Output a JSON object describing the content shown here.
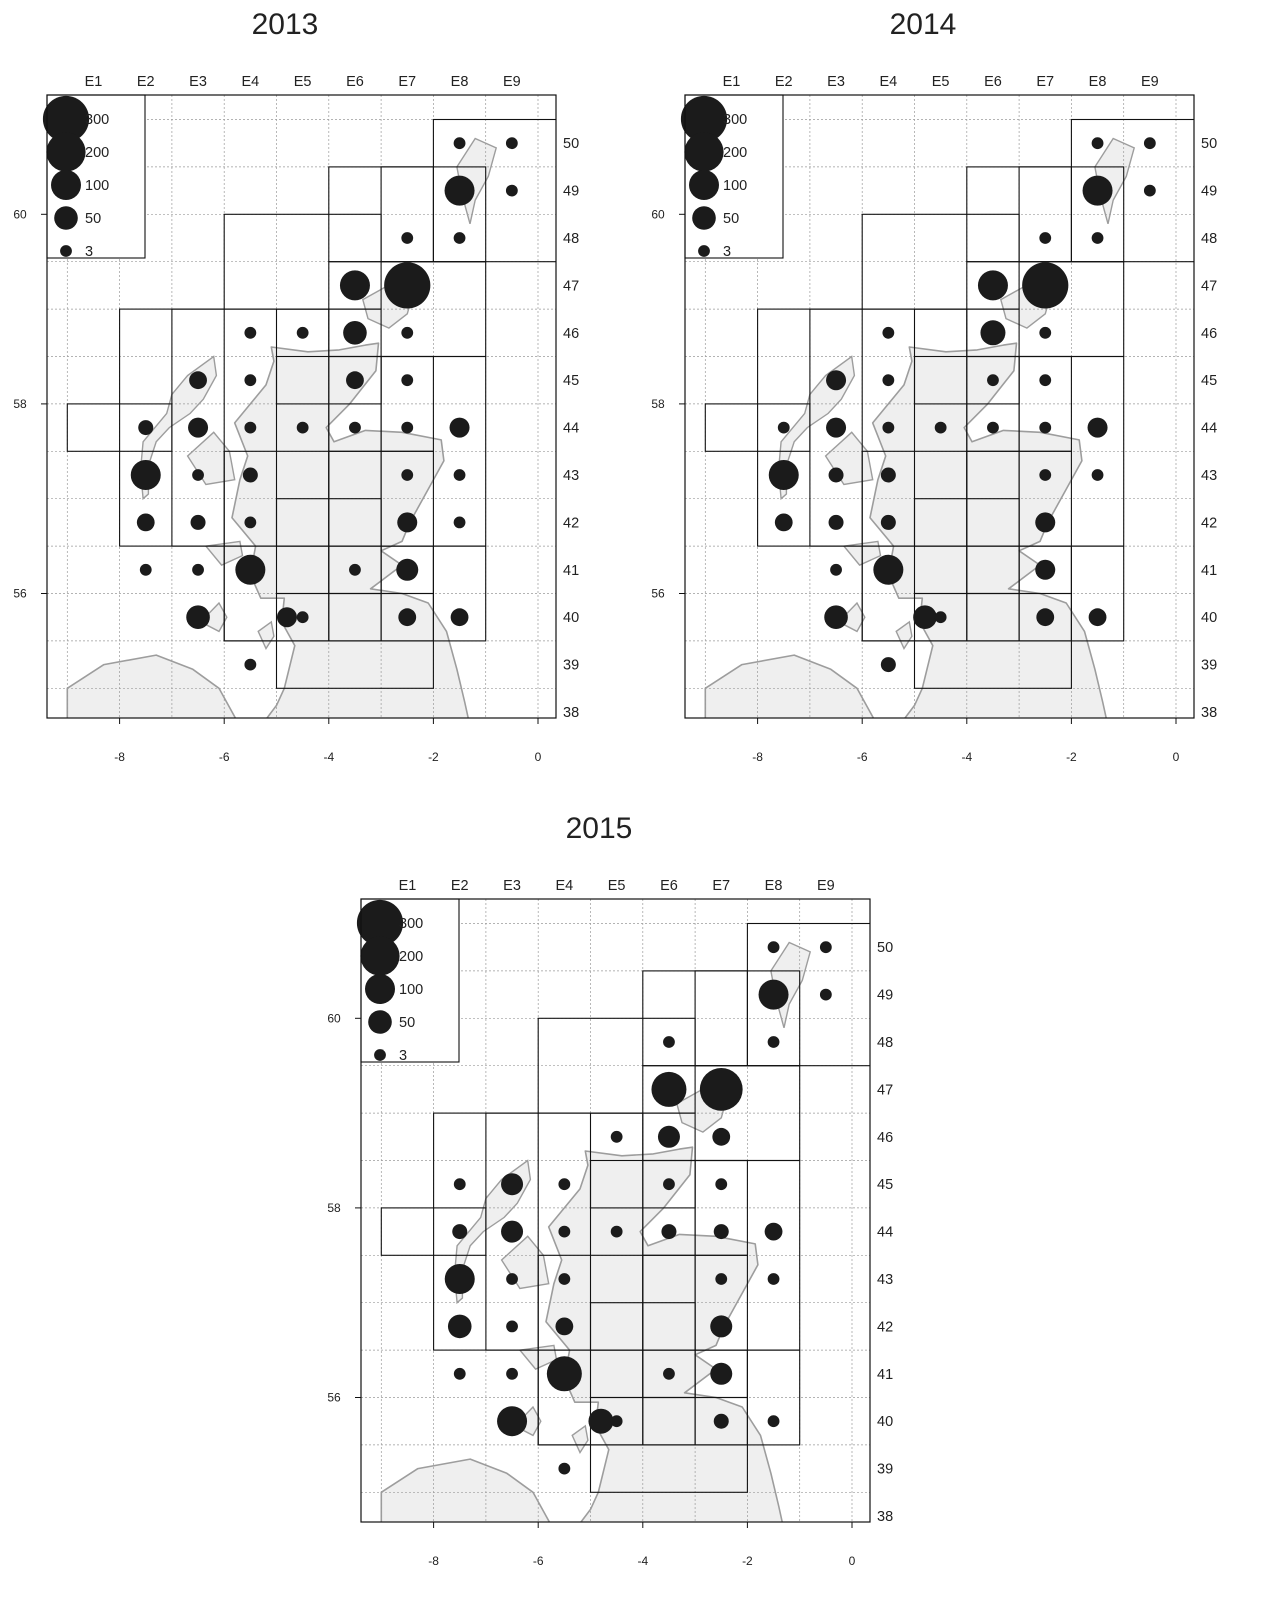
{
  "panels": [
    {
      "title": "2013",
      "points": [
        {
          "col": 8,
          "row": 50,
          "value": 3
        },
        {
          "col": 9,
          "row": 50,
          "value": 3
        },
        {
          "col": 8,
          "row": 49,
          "value": 100
        },
        {
          "col": 9,
          "row": 49,
          "value": 3
        },
        {
          "col": 7,
          "row": 48,
          "value": 3
        },
        {
          "col": 8,
          "row": 48,
          "value": 3
        },
        {
          "col": 6,
          "row": 47,
          "value": 100
        },
        {
          "col": 7,
          "row": 47,
          "value": 300
        },
        {
          "col": 4,
          "row": 46,
          "value": 3
        },
        {
          "col": 5,
          "row": 46,
          "value": 3
        },
        {
          "col": 6,
          "row": 46,
          "value": 50
        },
        {
          "col": 7,
          "row": 46,
          "value": 3
        },
        {
          "col": 3,
          "row": 45,
          "value": 20
        },
        {
          "col": 4,
          "row": 45,
          "value": 3
        },
        {
          "col": 6,
          "row": 45,
          "value": 20
        },
        {
          "col": 7,
          "row": 45,
          "value": 3
        },
        {
          "col": 2,
          "row": 44,
          "value": 10
        },
        {
          "col": 3,
          "row": 44,
          "value": 30
        },
        {
          "col": 4,
          "row": 44,
          "value": 3
        },
        {
          "col": 5,
          "row": 44,
          "value": 3
        },
        {
          "col": 6,
          "row": 44,
          "value": 3
        },
        {
          "col": 7,
          "row": 44,
          "value": 3
        },
        {
          "col": 8,
          "row": 44,
          "value": 30
        },
        {
          "col": 2,
          "row": 43,
          "value": 100
        },
        {
          "col": 3,
          "row": 43,
          "value": 3
        },
        {
          "col": 4,
          "row": 43,
          "value": 10
        },
        {
          "col": 7,
          "row": 43,
          "value": 3
        },
        {
          "col": 8,
          "row": 43,
          "value": 3
        },
        {
          "col": 2,
          "row": 42,
          "value": 20
        },
        {
          "col": 3,
          "row": 42,
          "value": 10
        },
        {
          "col": 4,
          "row": 42,
          "value": 3
        },
        {
          "col": 7,
          "row": 42,
          "value": 30
        },
        {
          "col": 8,
          "row": 42,
          "value": 3
        },
        {
          "col": 2,
          "row": 41,
          "value": 3
        },
        {
          "col": 3,
          "row": 41,
          "value": 3
        },
        {
          "col": 4,
          "row": 41,
          "value": 100
        },
        {
          "col": 6,
          "row": 41,
          "value": 3
        },
        {
          "col": 7,
          "row": 41,
          "value": 40
        },
        {
          "col": 3,
          "row": 40,
          "value": 50
        },
        {
          "col": 4.7,
          "row": 40,
          "value": 30
        },
        {
          "col": 5,
          "row": 40,
          "value": 3
        },
        {
          "col": 7,
          "row": 40,
          "value": 20
        },
        {
          "col": 8,
          "row": 40,
          "value": 20
        },
        {
          "col": 4,
          "row": 39,
          "value": 3
        }
      ]
    },
    {
      "title": "2014",
      "points": [
        {
          "col": 8,
          "row": 50,
          "value": 3
        },
        {
          "col": 9,
          "row": 50,
          "value": 3
        },
        {
          "col": 8,
          "row": 49,
          "value": 100
        },
        {
          "col": 9,
          "row": 49,
          "value": 3
        },
        {
          "col": 7,
          "row": 48,
          "value": 3
        },
        {
          "col": 8,
          "row": 48,
          "value": 3
        },
        {
          "col": 6,
          "row": 47,
          "value": 100
        },
        {
          "col": 7,
          "row": 47,
          "value": 300
        },
        {
          "col": 4,
          "row": 46,
          "value": 3
        },
        {
          "col": 6,
          "row": 46,
          "value": 60
        },
        {
          "col": 7,
          "row": 46,
          "value": 3
        },
        {
          "col": 3,
          "row": 45,
          "value": 30
        },
        {
          "col": 4,
          "row": 45,
          "value": 3
        },
        {
          "col": 6,
          "row": 45,
          "value": 3
        },
        {
          "col": 7,
          "row": 45,
          "value": 3
        },
        {
          "col": 2,
          "row": 44,
          "value": 3
        },
        {
          "col": 3,
          "row": 44,
          "value": 30
        },
        {
          "col": 4,
          "row": 44,
          "value": 3
        },
        {
          "col": 5,
          "row": 44,
          "value": 3
        },
        {
          "col": 6,
          "row": 44,
          "value": 3
        },
        {
          "col": 7,
          "row": 44,
          "value": 3
        },
        {
          "col": 8,
          "row": 44,
          "value": 30
        },
        {
          "col": 2,
          "row": 43,
          "value": 100
        },
        {
          "col": 3,
          "row": 43,
          "value": 10
        },
        {
          "col": 4,
          "row": 43,
          "value": 10
        },
        {
          "col": 7,
          "row": 43,
          "value": 3
        },
        {
          "col": 8,
          "row": 43,
          "value": 3
        },
        {
          "col": 2,
          "row": 42,
          "value": 20
        },
        {
          "col": 3,
          "row": 42,
          "value": 10
        },
        {
          "col": 4,
          "row": 42,
          "value": 10
        },
        {
          "col": 7,
          "row": 42,
          "value": 30
        },
        {
          "col": 3,
          "row": 41,
          "value": 3
        },
        {
          "col": 4,
          "row": 41,
          "value": 100
        },
        {
          "col": 7,
          "row": 41,
          "value": 30
        },
        {
          "col": 3,
          "row": 40,
          "value": 50
        },
        {
          "col": 4.7,
          "row": 40,
          "value": 50
        },
        {
          "col": 5,
          "row": 40,
          "value": 3
        },
        {
          "col": 7,
          "row": 40,
          "value": 20
        },
        {
          "col": 8,
          "row": 40,
          "value": 20
        },
        {
          "col": 4,
          "row": 39,
          "value": 10
        }
      ]
    },
    {
      "title": "2015",
      "points": [
        {
          "col": 8,
          "row": 50,
          "value": 3
        },
        {
          "col": 9,
          "row": 50,
          "value": 3
        },
        {
          "col": 8,
          "row": 49,
          "value": 100
        },
        {
          "col": 9,
          "row": 49,
          "value": 3
        },
        {
          "col": 6,
          "row": 48,
          "value": 3
        },
        {
          "col": 8,
          "row": 48,
          "value": 3
        },
        {
          "col": 6,
          "row": 47,
          "value": 150
        },
        {
          "col": 7,
          "row": 47,
          "value": 250
        },
        {
          "col": 5,
          "row": 46,
          "value": 3
        },
        {
          "col": 6,
          "row": 46,
          "value": 40
        },
        {
          "col": 7,
          "row": 46,
          "value": 20
        },
        {
          "col": 2,
          "row": 45,
          "value": 3
        },
        {
          "col": 3,
          "row": 45,
          "value": 40
        },
        {
          "col": 4,
          "row": 45,
          "value": 3
        },
        {
          "col": 6,
          "row": 45,
          "value": 3
        },
        {
          "col": 7,
          "row": 45,
          "value": 3
        },
        {
          "col": 2,
          "row": 44,
          "value": 10
        },
        {
          "col": 3,
          "row": 44,
          "value": 40
        },
        {
          "col": 4,
          "row": 44,
          "value": 3
        },
        {
          "col": 5,
          "row": 44,
          "value": 3
        },
        {
          "col": 6,
          "row": 44,
          "value": 10
        },
        {
          "col": 7,
          "row": 44,
          "value": 10
        },
        {
          "col": 8,
          "row": 44,
          "value": 20
        },
        {
          "col": 2,
          "row": 43,
          "value": 100
        },
        {
          "col": 3,
          "row": 43,
          "value": 3
        },
        {
          "col": 4,
          "row": 43,
          "value": 3
        },
        {
          "col": 7,
          "row": 43,
          "value": 3
        },
        {
          "col": 8,
          "row": 43,
          "value": 3
        },
        {
          "col": 2,
          "row": 42,
          "value": 50
        },
        {
          "col": 3,
          "row": 42,
          "value": 3
        },
        {
          "col": 4,
          "row": 42,
          "value": 20
        },
        {
          "col": 7,
          "row": 42,
          "value": 40
        },
        {
          "col": 2,
          "row": 41,
          "value": 3
        },
        {
          "col": 3,
          "row": 41,
          "value": 3
        },
        {
          "col": 4,
          "row": 41,
          "value": 150
        },
        {
          "col": 6,
          "row": 41,
          "value": 3
        },
        {
          "col": 7,
          "row": 41,
          "value": 40
        },
        {
          "col": 3,
          "row": 40,
          "value": 100
        },
        {
          "col": 4.7,
          "row": 40,
          "value": 60
        },
        {
          "col": 5,
          "row": 40,
          "value": 3
        },
        {
          "col": 7,
          "row": 40,
          "value": 10
        },
        {
          "col": 8,
          "row": 40,
          "value": 3
        },
        {
          "col": 4,
          "row": 39,
          "value": 3
        }
      ]
    }
  ],
  "axes": {
    "x_ticks": [
      "-8",
      "-6",
      "-4",
      "-2",
      "0"
    ],
    "y_ticks": [
      "60",
      "58",
      "56"
    ],
    "top_labels": [
      "E1",
      "E2",
      "E3",
      "E4",
      "E5",
      "E6",
      "E7",
      "E8",
      "E9"
    ],
    "right_labels": [
      "50",
      "49",
      "48",
      "47",
      "46",
      "45",
      "44",
      "43",
      "42",
      "41",
      "40",
      "39",
      "38"
    ]
  },
  "legend": [
    {
      "label": "300",
      "value": 300
    },
    {
      "label": "200",
      "value": 200
    },
    {
      "label": "100",
      "value": 100
    },
    {
      "label": "50",
      "value": 50
    },
    {
      "label": "3",
      "value": 3
    }
  ],
  "colors": {
    "land": "#efefef",
    "coast": "#9d9d9d",
    "dot": "#1b1b1b",
    "box": "#111111"
  }
}
